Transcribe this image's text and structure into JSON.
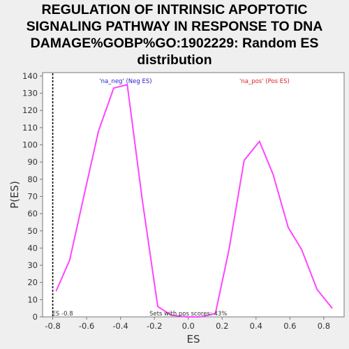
{
  "chart_data": {
    "type": "line",
    "title": "REGULATION OF INTRINSIC APOPTOTIC\nSIGNALING PATHWAY IN RESPONSE TO DNA\nDAMAGE%GOBP%GO:1902229: Random ES\ndistribution",
    "xlabel": "ES",
    "ylabel": "P(ES)",
    "xlim": [
      -0.86,
      0.92
    ],
    "ylim": [
      0,
      142
    ],
    "xticks": [
      -0.8,
      -0.6,
      -0.4,
      -0.2,
      0.0,
      0.2,
      0.4,
      0.6,
      0.8
    ],
    "xtick_labels": [
      "-0.8",
      "-0.6",
      "-0.4",
      "-0.2",
      "0.0",
      "0.2",
      "0.4",
      "0.6",
      "0.8"
    ],
    "yticks": [
      0,
      10,
      20,
      30,
      40,
      50,
      60,
      70,
      80,
      90,
      100,
      110,
      120,
      130,
      140
    ],
    "ytick_labels": [
      "0",
      "10",
      "20",
      "30",
      "40",
      "50",
      "60",
      "70",
      "80",
      "90",
      "100",
      "110",
      "120",
      "130",
      "140"
    ],
    "series": [
      {
        "color": "#ff44ff",
        "x": [
          -0.78,
          -0.7,
          -0.61,
          -0.53,
          -0.44,
          -0.36,
          -0.27,
          -0.18,
          -0.1,
          -0.01,
          0.07,
          0.16,
          0.24,
          0.33,
          0.42,
          0.5,
          0.59,
          0.67,
          0.76,
          0.85
        ],
        "y": [
          15,
          33,
          73,
          108,
          133,
          135,
          67,
          6,
          1,
          0,
          0,
          2,
          39,
          91,
          102,
          83,
          52,
          39,
          16,
          5
        ]
      }
    ],
    "es_line": {
      "x": -0.8,
      "label": "ES -0.8"
    },
    "annotations": {
      "neg_label": "'na_neg' (Neg ES)",
      "pos_label": "'na_pos' (Pos ES)",
      "sets_text": "Sets with pos scores: 43%"
    },
    "colors": {
      "neg": "#2222cc",
      "pos": "#dd2222",
      "curve": "#ff44ff"
    },
    "grid": false,
    "legend": "none"
  }
}
